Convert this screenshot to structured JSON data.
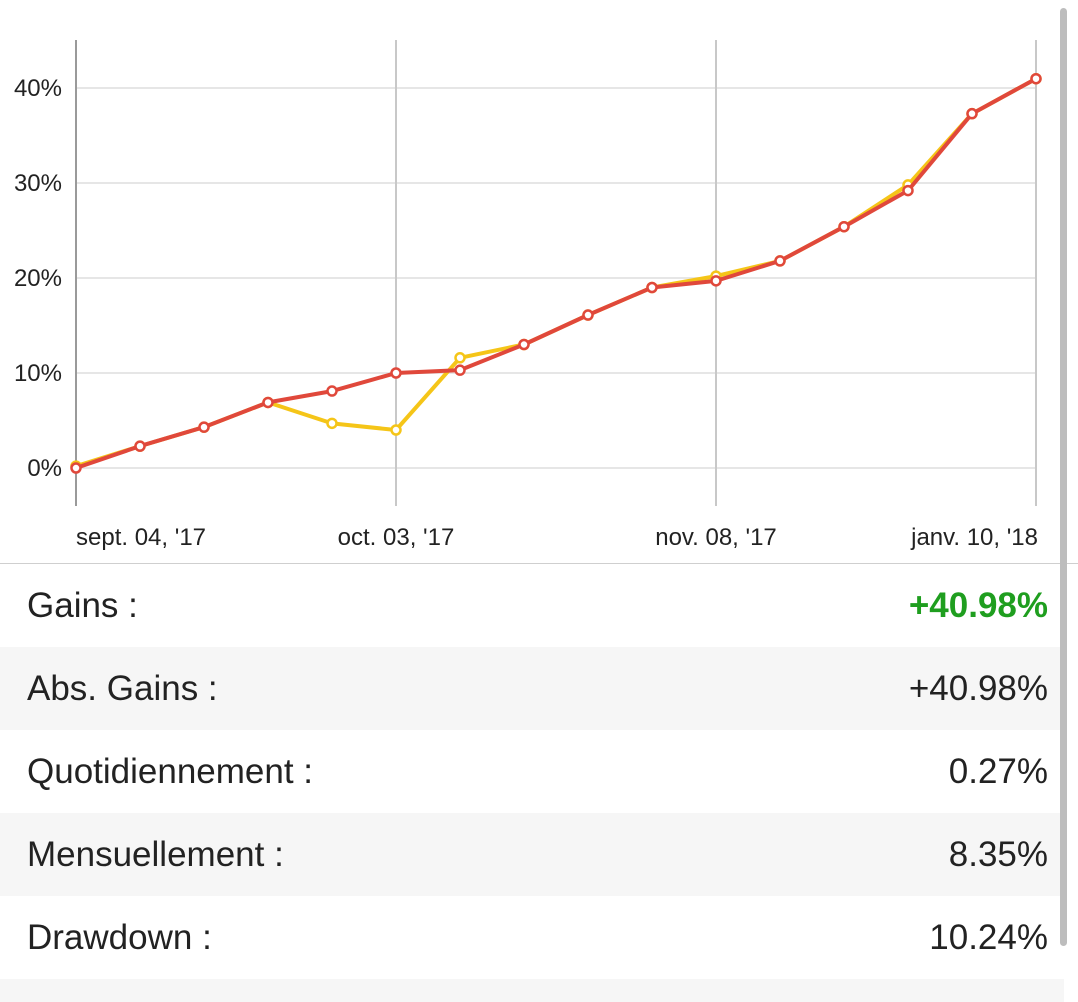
{
  "chart_data": {
    "type": "line",
    "y_ticks": [
      "40%",
      "30%",
      "20%",
      "10%",
      "0%"
    ],
    "y_tick_values": [
      40,
      30,
      20,
      10,
      0
    ],
    "ylim": [
      -4.5,
      45
    ],
    "x_tick_labels": [
      "sept. 04, '17",
      "oct. 03, '17",
      "nov. 08, '17",
      "janv. 10, '18"
    ],
    "x_tick_indices": [
      0,
      5,
      10,
      15
    ],
    "x_count": 16,
    "grid": true,
    "series": [
      {
        "color": "#f5c518",
        "values": [
          0.2,
          2.3,
          4.3,
          6.9,
          4.7,
          4.0,
          11.6,
          13.0,
          16.1,
          19.0,
          20.2,
          21.8,
          25.4,
          29.8,
          37.3,
          40.98
        ]
      },
      {
        "color": "#e0483b",
        "values": [
          0.0,
          2.3,
          4.3,
          6.9,
          8.1,
          10.0,
          10.3,
          13.0,
          16.1,
          19.0,
          19.7,
          21.8,
          25.4,
          29.2,
          37.3,
          40.98
        ]
      }
    ]
  },
  "stats": {
    "gains_label": "Gains :",
    "gains_value": "+40.98%",
    "abs_gains_label": "Abs. Gains :",
    "abs_gains_value": "+40.98%",
    "daily_label": "Quotidiennement :",
    "daily_value": "0.27%",
    "monthly_label": "Mensuellement :",
    "monthly_value": "8.35%",
    "drawdown_label": "Drawdown :",
    "drawdown_value": "10.24%"
  },
  "colors": {
    "positive": "#1f9e1f",
    "grid": "#e6e6e6",
    "vertical_grid": "#c8c8c8"
  }
}
